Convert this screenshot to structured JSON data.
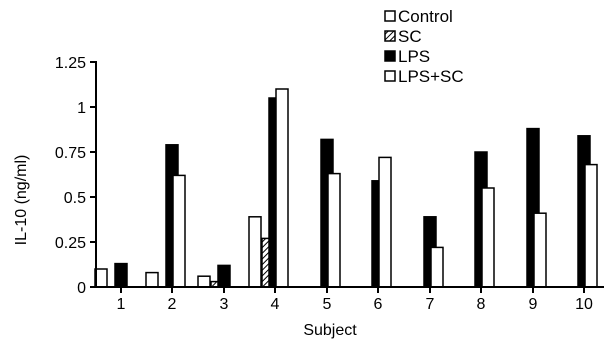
{
  "chart_data": {
    "type": "bar",
    "title": "",
    "xlabel": "Subject",
    "ylabel": "IL-10 (ng/ml)",
    "ylim": [
      0,
      1.25
    ],
    "yticks": [
      "0",
      "0.25",
      "0.5",
      "0.75",
      "1",
      "1.25"
    ],
    "categories": [
      "1",
      "2",
      "3",
      "4",
      "5",
      "6",
      "7",
      "8",
      "9",
      "10"
    ],
    "series": [
      {
        "name": "Control",
        "values": [
          0.1,
          0.08,
          0.06,
          0.39,
          0.0,
          0.0,
          0.0,
          0.0,
          0.0,
          0.0
        ]
      },
      {
        "name": "SC",
        "values": [
          0.0,
          0.0,
          0.03,
          0.27,
          0.0,
          0.0,
          0.0,
          0.0,
          0.0,
          0.0
        ]
      },
      {
        "name": "LPS",
        "values": [
          0.13,
          0.79,
          0.12,
          1.05,
          0.82,
          0.59,
          0.39,
          0.75,
          0.88,
          0.84
        ]
      },
      {
        "name": "LPS+SC",
        "values": [
          0.0,
          0.62,
          0.0,
          1.1,
          0.63,
          0.72,
          0.22,
          0.55,
          0.41,
          0.68
        ]
      }
    ],
    "legend_position": "top-right",
    "grid": false
  }
}
